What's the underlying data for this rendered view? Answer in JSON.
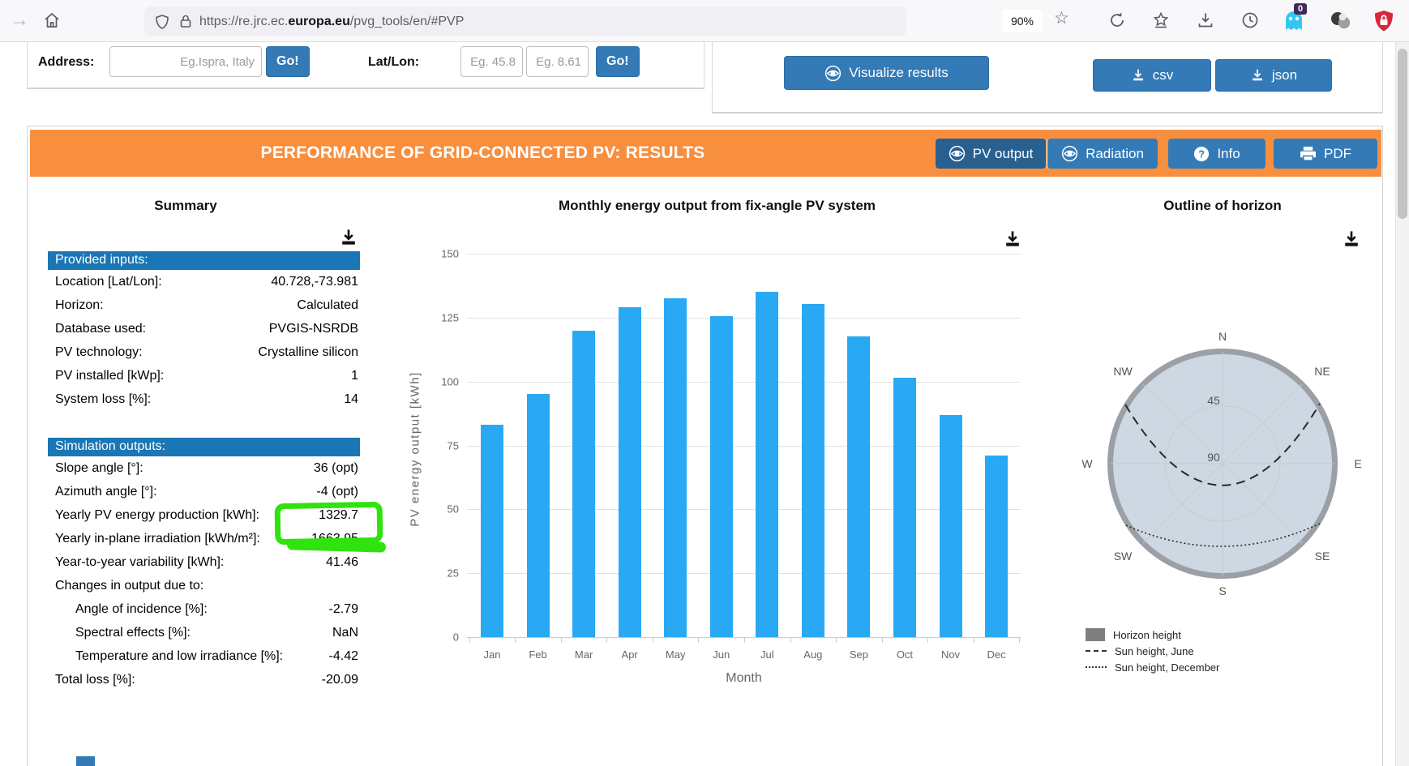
{
  "browser": {
    "url_prefix": "https://re.jrc.ec.",
    "url_domain": "europa.eu",
    "url_suffix": "/pvg_tools/en/#PVP",
    "zoom_level": "90%",
    "extension_badge": "0"
  },
  "form": {
    "address_label": "Address:",
    "address_placeholder": "Eg.Ispra, Italy",
    "go_label": "Go!",
    "latlon_label": "Lat/Lon:",
    "lat_placeholder": "Eg. 45.8",
    "lon_placeholder": "Eg. 8.61"
  },
  "toolbar": {
    "visualize_label": "Visualize results",
    "csv_label": "csv",
    "json_label": "json"
  },
  "results_header": {
    "title": "PERFORMANCE OF GRID-CONNECTED PV: RESULTS",
    "tabs": [
      {
        "label": "PV output",
        "icon": "eye",
        "active": true
      },
      {
        "label": "Radiation",
        "icon": "eye",
        "active": false
      },
      {
        "label": "Info",
        "icon": "question",
        "active": false
      },
      {
        "label": "PDF",
        "icon": "printer",
        "active": false
      }
    ]
  },
  "summary": {
    "title": "Summary",
    "provided": {
      "header": "Provided inputs:",
      "rows": [
        {
          "label": "Location [Lat/Lon]:",
          "value": "40.728,-73.981"
        },
        {
          "label": "Horizon:",
          "value": "Calculated"
        },
        {
          "label": "Database used:",
          "value": "PVGIS-NSRDB"
        },
        {
          "label": "PV technology:",
          "value": "Crystalline silicon"
        },
        {
          "label": "PV installed [kWp]:",
          "value": "1"
        },
        {
          "label": "System loss [%]:",
          "value": "14"
        }
      ]
    },
    "simulation": {
      "header": "Simulation outputs:",
      "rows": [
        {
          "label": "Slope angle [°]:",
          "value": "36 (opt)"
        },
        {
          "label": "Azimuth angle [°]:",
          "value": "-4 (opt)"
        },
        {
          "label": "Yearly PV energy production [kWh]:",
          "value": "1329.7",
          "highlight": true
        },
        {
          "label": "Yearly in-plane irradiation [kWh/m²]:",
          "value": "1663.95"
        },
        {
          "label": "Year-to-year variability [kWh]:",
          "value": "41.46"
        },
        {
          "label": "Changes in output due to:",
          "value": ""
        },
        {
          "label": "Angle of incidence [%]:",
          "value": "-2.79",
          "indent": true
        },
        {
          "label": "Spectral effects [%]:",
          "value": "NaN",
          "indent": true
        },
        {
          "label": "Temperature and low irradiance [%]:",
          "value": "-4.42",
          "indent": true
        },
        {
          "label": "Total loss [%]:",
          "value": "-20.09"
        }
      ]
    }
  },
  "chart_data": {
    "type": "bar",
    "title": "Monthly energy output from fix-angle PV system",
    "xlabel": "Month",
    "ylabel": "PV energy output [kWh]",
    "categories": [
      "Jan",
      "Feb",
      "Mar",
      "Apr",
      "May",
      "Jun",
      "Jul",
      "Aug",
      "Sep",
      "Oct",
      "Nov",
      "Dec"
    ],
    "values": [
      83,
      95,
      120,
      129,
      132.5,
      125.5,
      135,
      130.5,
      117.5,
      101.5,
      87,
      71
    ],
    "ylim": [
      0,
      150
    ],
    "yticks": [
      0,
      25,
      50,
      75,
      100,
      125,
      150
    ],
    "grid": true,
    "bar_color": "#29a9f3",
    "legend_position": "none"
  },
  "horizon": {
    "title": "Outline of horizon",
    "compass": [
      "N",
      "NE",
      "E",
      "SE",
      "S",
      "SW",
      "W",
      "NW"
    ],
    "ring_labels": [
      "45",
      "90"
    ],
    "legend": [
      {
        "label": "Horizon height",
        "style": "fill"
      },
      {
        "label": "Sun height, June",
        "style": "dashed"
      },
      {
        "label": "Sun height, December",
        "style": "dotted"
      }
    ]
  },
  "colors": {
    "accent_orange": "#f78f3f",
    "button_blue": "#337ab7",
    "active_tab_blue": "#286090",
    "section_header_blue": "#1b76b5",
    "bar_blue": "#29a9f3",
    "horizon_fill": "#cdd8e2",
    "horizon_ring": "#9aa0a6",
    "highlight_green": "#2fe30c"
  }
}
